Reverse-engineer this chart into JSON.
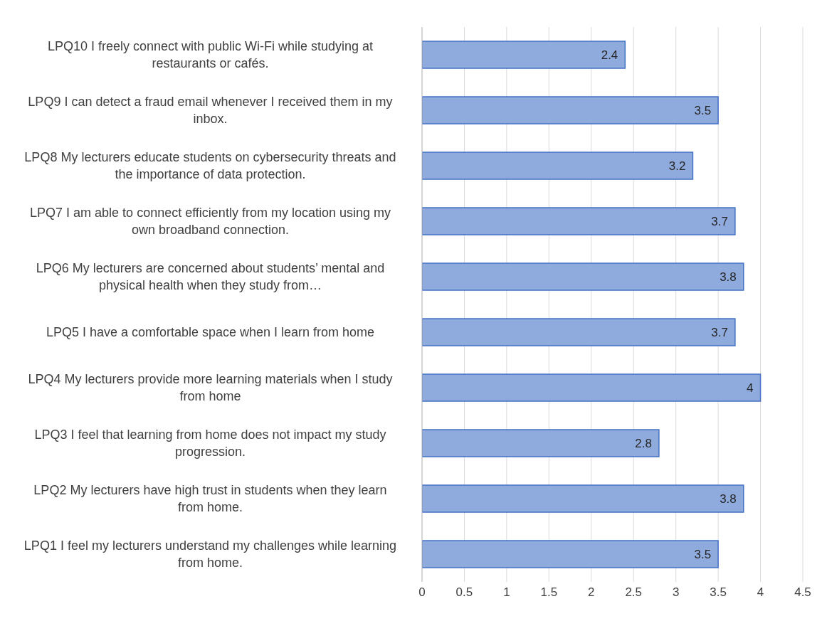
{
  "chart_data": {
    "type": "bar",
    "orientation": "horizontal",
    "categories": [
      "LPQ10 I freely connect with public Wi-Fi while studying at restaurants or cafés.",
      "LPQ9 I can detect a fraud email whenever I received them in my inbox.",
      "LPQ8 My lecturers educate students on cybersecurity threats and the importance of data protection.",
      "LPQ7 I am able to connect efficiently from my location using my own broadband connection.",
      "LPQ6 My lecturers are concerned about students’ mental and physical health when they study from…",
      "LPQ5 I have a comfortable space when I learn from home",
      "LPQ4 My lecturers provide more learning materials when I study from home",
      "LPQ3 I feel that learning from home does not impact my study progression.",
      "LPQ2 My lecturers have high trust in students when they learn from home.",
      "LPQ1 I feel my lecturers understand my challenges while learning from home."
    ],
    "values": [
      2.4,
      3.5,
      3.2,
      3.7,
      3.8,
      3.7,
      4,
      2.8,
      3.8,
      3.5
    ],
    "color": "#8faadc",
    "xlim": [
      0,
      4.5
    ],
    "xticks": [
      0,
      0.5,
      1,
      1.5,
      2,
      2.5,
      3,
      3.5,
      4,
      4.5
    ],
    "grid": "x",
    "data_labels": true
  }
}
